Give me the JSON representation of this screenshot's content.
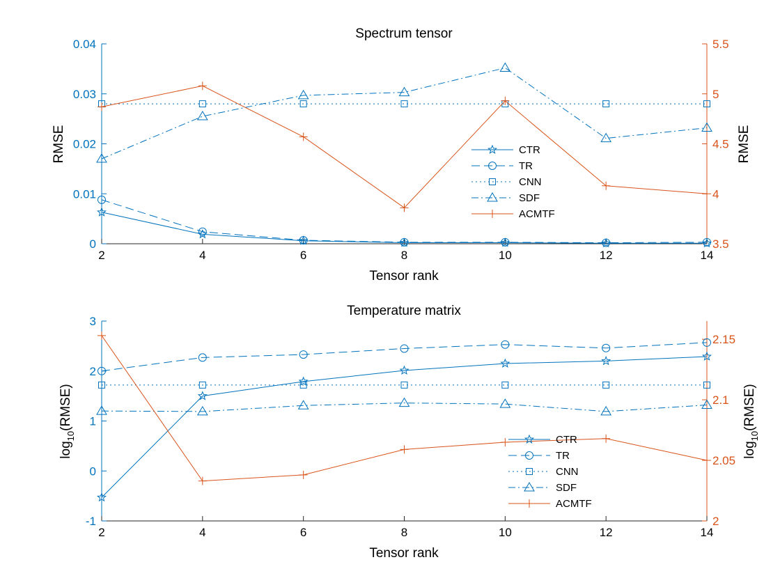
{
  "colors": {
    "left": "#0072BD",
    "right": "#D95319",
    "axis": "#262626"
  },
  "chart_data": [
    {
      "type": "line",
      "title": "Spectrum tensor",
      "xlabel": "Tensor rank",
      "ylabel_left": "RMSE",
      "ylabel_right": "RMSE",
      "x": [
        2,
        4,
        6,
        8,
        10,
        12,
        14
      ],
      "xlim": [
        2,
        14
      ],
      "xticks": [
        "2",
        "4",
        "6",
        "8",
        "10",
        "12",
        "14"
      ],
      "ylim_left": [
        0,
        0.04
      ],
      "yticks_left": [
        "0",
        "0.01",
        "0.02",
        "0.03",
        "0.04"
      ],
      "ylim_right": [
        3.5,
        5.5
      ],
      "yticks_right": [
        "3.5",
        "4",
        "4.5",
        "5",
        "5.5"
      ],
      "legend_position": "center-right",
      "series": [
        {
          "name": "CTR",
          "axis": "left",
          "marker": "star",
          "style": "solid",
          "values": [
            0.0063,
            0.0019,
            0.0006,
            0.0002,
            0.0002,
            0.0001,
            0.0001
          ]
        },
        {
          "name": "TR",
          "axis": "left",
          "marker": "circle",
          "style": "dashed",
          "values": [
            0.0088,
            0.0024,
            0.0007,
            0.0003,
            0.0003,
            0.0002,
            0.0003
          ]
        },
        {
          "name": "CNN",
          "axis": "left",
          "marker": "square",
          "style": "dotted",
          "values": [
            0.028,
            0.028,
            0.028,
            0.028,
            0.028,
            0.028,
            0.028
          ]
        },
        {
          "name": "SDF",
          "axis": "left",
          "marker": "triangle",
          "style": "dashdot",
          "values": [
            0.017,
            0.0255,
            0.0297,
            0.0303,
            0.0352,
            0.0211,
            0.0232
          ]
        },
        {
          "name": "ACMTF",
          "axis": "right",
          "marker": "plus",
          "style": "solid",
          "values": [
            4.87,
            5.08,
            4.57,
            3.86,
            4.93,
            4.08,
            4.0
          ]
        }
      ]
    },
    {
      "type": "line",
      "title": "Temperature matrix",
      "xlabel": "Tensor rank",
      "ylabel_left": "log10(RMSE)",
      "ylabel_right": "log10(RMSE)",
      "x": [
        2,
        4,
        6,
        8,
        10,
        12,
        14
      ],
      "xlim": [
        2,
        14
      ],
      "xticks": [
        "2",
        "4",
        "6",
        "8",
        "10",
        "12",
        "14"
      ],
      "ylim_left": [
        -1,
        3
      ],
      "yticks_left": [
        "-1",
        "0",
        "1",
        "2",
        "3"
      ],
      "ylim_right": [
        2.0,
        2.165
      ],
      "yticks_right": [
        "2",
        "2.05",
        "2.1",
        "2.15"
      ],
      "legend_position": "bottom-right",
      "series": [
        {
          "name": "CTR",
          "axis": "left",
          "marker": "star",
          "style": "solid",
          "values": [
            -0.53,
            1.5,
            1.79,
            2.01,
            2.15,
            2.2,
            2.29
          ]
        },
        {
          "name": "TR",
          "axis": "left",
          "marker": "circle",
          "style": "dashed",
          "values": [
            2.0,
            2.27,
            2.33,
            2.45,
            2.53,
            2.46,
            2.57
          ]
        },
        {
          "name": "CNN",
          "axis": "left",
          "marker": "square",
          "style": "dotted",
          "values": [
            1.72,
            1.72,
            1.72,
            1.72,
            1.72,
            1.72,
            1.72
          ]
        },
        {
          "name": "SDF",
          "axis": "left",
          "marker": "triangle",
          "style": "dashdot",
          "values": [
            1.2,
            1.19,
            1.31,
            1.36,
            1.34,
            1.19,
            1.32
          ]
        },
        {
          "name": "ACMTF",
          "axis": "right",
          "marker": "plus",
          "style": "solid",
          "values": [
            2.153,
            2.033,
            2.038,
            2.059,
            2.065,
            2.068,
            2.05
          ]
        }
      ]
    }
  ]
}
